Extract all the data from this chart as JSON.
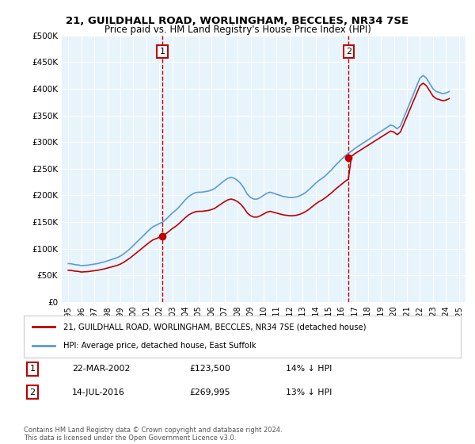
{
  "title": "21, GUILDHALL ROAD, WORLINGHAM, BECCLES, NR34 7SE",
  "subtitle": "Price paid vs. HM Land Registry's House Price Index (HPI)",
  "bg_color": "#e8f4fc",
  "plot_bg_color": "#e8f4fc",
  "legend_entry1": "21, GUILDHALL ROAD, WORLINGHAM, BECCLES, NR34 7SE (detached house)",
  "legend_entry2": "HPI: Average price, detached house, East Suffolk",
  "annotation1_label": "1",
  "annotation1_date": "22-MAR-2002",
  "annotation1_price": "£123,500",
  "annotation1_pct": "14% ↓ HPI",
  "annotation2_label": "2",
  "annotation2_date": "14-JUL-2016",
  "annotation2_price": "£269,995",
  "annotation2_pct": "13% ↓ HPI",
  "footer": "Contains HM Land Registry data © Crown copyright and database right 2024.\nThis data is licensed under the Open Government Licence v3.0.",
  "vline1_x": 2002.22,
  "vline2_x": 2016.53,
  "sale1_x": 2002.22,
  "sale1_y": 123500,
  "sale2_x": 2016.53,
  "sale2_y": 269995,
  "ylim": [
    0,
    500000
  ],
  "xlim": [
    1994.5,
    2025.5
  ],
  "hpi_color": "#5b9bd5",
  "sale_color": "#c00000",
  "vline_color": "#c00000",
  "hpi_x": [
    1995.0,
    1995.25,
    1995.5,
    1995.75,
    1996.0,
    1996.25,
    1996.5,
    1996.75,
    1997.0,
    1997.25,
    1997.5,
    1997.75,
    1998.0,
    1998.25,
    1998.5,
    1998.75,
    1999.0,
    1999.25,
    1999.5,
    1999.75,
    2000.0,
    2000.25,
    2000.5,
    2000.75,
    2001.0,
    2001.25,
    2001.5,
    2001.75,
    2002.0,
    2002.25,
    2002.5,
    2002.75,
    2003.0,
    2003.25,
    2003.5,
    2003.75,
    2004.0,
    2004.25,
    2004.5,
    2004.75,
    2005.0,
    2005.25,
    2005.5,
    2005.75,
    2006.0,
    2006.25,
    2006.5,
    2006.75,
    2007.0,
    2007.25,
    2007.5,
    2007.75,
    2008.0,
    2008.25,
    2008.5,
    2008.75,
    2009.0,
    2009.25,
    2009.5,
    2009.75,
    2010.0,
    2010.25,
    2010.5,
    2010.75,
    2011.0,
    2011.25,
    2011.5,
    2011.75,
    2012.0,
    2012.25,
    2012.5,
    2012.75,
    2013.0,
    2013.25,
    2013.5,
    2013.75,
    2014.0,
    2014.25,
    2014.5,
    2014.75,
    2015.0,
    2015.25,
    2015.5,
    2015.75,
    2016.0,
    2016.25,
    2016.5,
    2016.75,
    2017.0,
    2017.25,
    2017.5,
    2017.75,
    2018.0,
    2018.25,
    2018.5,
    2018.75,
    2019.0,
    2019.25,
    2019.5,
    2019.75,
    2020.0,
    2020.25,
    2020.5,
    2020.75,
    2021.0,
    2021.25,
    2021.5,
    2021.75,
    2022.0,
    2022.25,
    2022.5,
    2022.75,
    2023.0,
    2023.25,
    2023.5,
    2023.75,
    2024.0,
    2024.25
  ],
  "hpi_y": [
    72000,
    71500,
    70000,
    69500,
    68000,
    68500,
    69000,
    70000,
    71000,
    72000,
    73500,
    75000,
    77000,
    79000,
    81000,
    83000,
    86000,
    90000,
    95000,
    100000,
    106000,
    112000,
    118000,
    124000,
    130000,
    136000,
    141000,
    144000,
    147000,
    150000,
    155000,
    161000,
    167000,
    172000,
    178000,
    185000,
    192000,
    198000,
    202000,
    205000,
    206000,
    206000,
    207000,
    208000,
    210000,
    213000,
    218000,
    223000,
    228000,
    232000,
    234000,
    232000,
    228000,
    222000,
    213000,
    202000,
    196000,
    193000,
    193000,
    196000,
    200000,
    204000,
    206000,
    204000,
    202000,
    200000,
    198000,
    197000,
    196000,
    196000,
    197000,
    199000,
    202000,
    206000,
    211000,
    217000,
    223000,
    228000,
    232000,
    237000,
    243000,
    249000,
    256000,
    262000,
    268000,
    274000,
    279000,
    283000,
    288000,
    292000,
    296000,
    300000,
    304000,
    308000,
    312000,
    316000,
    320000,
    324000,
    328000,
    332000,
    330000,
    325000,
    330000,
    345000,
    360000,
    375000,
    390000,
    405000,
    420000,
    425000,
    420000,
    410000,
    400000,
    395000,
    393000,
    391000,
    392000,
    395000
  ]
}
